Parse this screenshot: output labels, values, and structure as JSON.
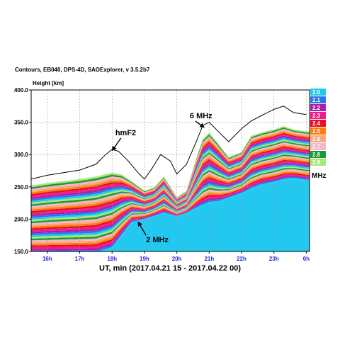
{
  "header": {
    "title": "Contours, EB040, DPS-4D, SAOExplorer, v 3.5.2b7"
  },
  "chart_data": {
    "type": "area",
    "title": "Contours, EB040, DPS-4D, SAOExplorer, v 3.5.2b7",
    "ylabel": "Height [km]",
    "xlabel": "UT, min (2017.04.21 15 - 2017.04.22 00)",
    "xlim": [
      15.5,
      24.1
    ],
    "ylim": [
      150,
      400
    ],
    "y_ticks": [
      150,
      200,
      250,
      300,
      350,
      400
    ],
    "y_tick_labels": [
      "150.0",
      "200.0",
      "250.0",
      "300.0",
      "350.0",
      "400.0"
    ],
    "x_ticks": [
      16,
      17,
      18,
      19,
      20,
      21,
      22,
      23,
      24
    ],
    "x_tick_labels": [
      "16h",
      "17h",
      "18h",
      "19h",
      "20h",
      "21h",
      "22h",
      "23h",
      "0h"
    ],
    "grid": true,
    "legend_position": "right",
    "legend_unit": "MHz",
    "legend": [
      {
        "label": "2.0",
        "color": "#22c8f0"
      },
      {
        "label": "2.1",
        "color": "#2878e8"
      },
      {
        "label": "2.2",
        "color": "#b01ab0"
      },
      {
        "label": "2.3",
        "color": "#f01c8c"
      },
      {
        "label": "2.4",
        "color": "#e81020"
      },
      {
        "label": "2.5",
        "color": "#ff7d10"
      },
      {
        "label": "2.6",
        "color": "#f8a878"
      },
      {
        "label": "2.7",
        "color": "#f8b4c8"
      },
      {
        "label": "2.8",
        "color": "#1a9a30"
      },
      {
        "label": "2.9",
        "color": "#a8e878"
      }
    ],
    "series": [
      {
        "name": "hmF2",
        "x": [
          15.5,
          16.0,
          16.5,
          17.0,
          17.5,
          17.8,
          18.0,
          18.2,
          18.5,
          18.8,
          19.0,
          19.2,
          19.5,
          19.8,
          20.0,
          20.3,
          20.6,
          20.8,
          21.0,
          21.3,
          21.6,
          22.0,
          22.3,
          22.6,
          23.0,
          23.3,
          23.6,
          24.0
        ],
        "values": [
          262,
          268,
          272,
          276,
          285,
          300,
          308,
          305,
          290,
          272,
          262,
          276,
          300,
          290,
          270,
          285,
          320,
          345,
          350,
          335,
          320,
          340,
          352,
          360,
          370,
          375,
          365,
          362
        ]
      },
      {
        "name": "6 MHz",
        "x": [
          15.5,
          16.0,
          16.5,
          17.0,
          17.5,
          18.0,
          18.3,
          18.6,
          19.0,
          19.3,
          19.6,
          20.0,
          20.3,
          20.6,
          20.8,
          21.0,
          21.3,
          21.6,
          22.0,
          22.3,
          22.6,
          23.0,
          23.3,
          23.6,
          24.0
        ],
        "values": [
          248,
          252,
          255,
          258,
          262,
          268,
          265,
          255,
          240,
          245,
          262,
          230,
          240,
          290,
          320,
          330,
          312,
          292,
          300,
          325,
          330,
          335,
          340,
          335,
          332
        ]
      },
      {
        "name": "2 MHz",
        "x": [
          15.5,
          16.0,
          16.5,
          17.0,
          17.5,
          18.0,
          18.3,
          18.6,
          19.0,
          19.3,
          19.6,
          20.0,
          20.3,
          20.6,
          21.0,
          21.3,
          21.6,
          22.0,
          22.3,
          22.6,
          23.0,
          23.3,
          23.6,
          24.0
        ],
        "values": [
          152,
          152,
          152,
          152,
          152,
          160,
          180,
          200,
          205,
          210,
          215,
          210,
          215,
          222,
          230,
          232,
          238,
          245,
          252,
          258,
          262,
          266,
          268,
          265
        ]
      }
    ],
    "annotations": [
      {
        "text": "hmF2",
        "x": 18.1,
        "y": 330
      },
      {
        "text": "6 MHz",
        "x": 20.4,
        "y": 356
      },
      {
        "text": "2 MHz",
        "x": 19.05,
        "y": 164
      }
    ]
  }
}
